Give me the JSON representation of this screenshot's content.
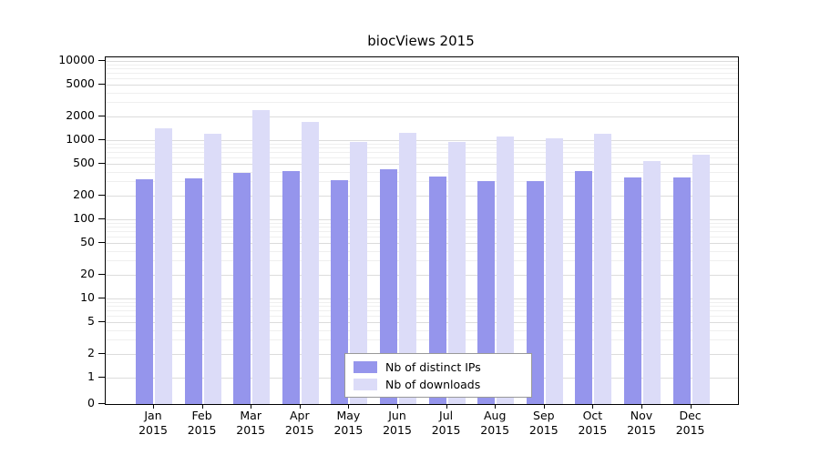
{
  "title": "biocViews 2015",
  "chart_data": {
    "type": "bar",
    "title": "biocViews 2015",
    "categories": [
      "Jan",
      "Feb",
      "Mar",
      "Apr",
      "May",
      "Jun",
      "Jul",
      "Aug",
      "Sep",
      "Oct",
      "Nov",
      "Dec"
    ],
    "year": "2015",
    "series": [
      {
        "name": "Nb of distinct IPs",
        "color": "#9595ec",
        "values": [
          320,
          325,
          385,
          405,
          315,
          425,
          345,
          305,
          305,
          405,
          335,
          340
        ]
      },
      {
        "name": "Nb of downloads",
        "color": "#dcdcf8",
        "values": [
          1400,
          1200,
          2400,
          1700,
          950,
          1250,
          950,
          1100,
          1050,
          1200,
          550,
          650
        ]
      }
    ],
    "yscale": "log",
    "yticks": [
      0,
      1,
      2,
      5,
      10,
      20,
      50,
      100,
      200,
      500,
      1000,
      2000,
      5000,
      10000
    ],
    "ylim": [
      0,
      10000
    ],
    "xlabel": "",
    "ylabel": "",
    "grid": true,
    "legend": {
      "position": "bottom-center",
      "entries": [
        "Nb of distinct IPs",
        "Nb of downloads"
      ]
    }
  }
}
